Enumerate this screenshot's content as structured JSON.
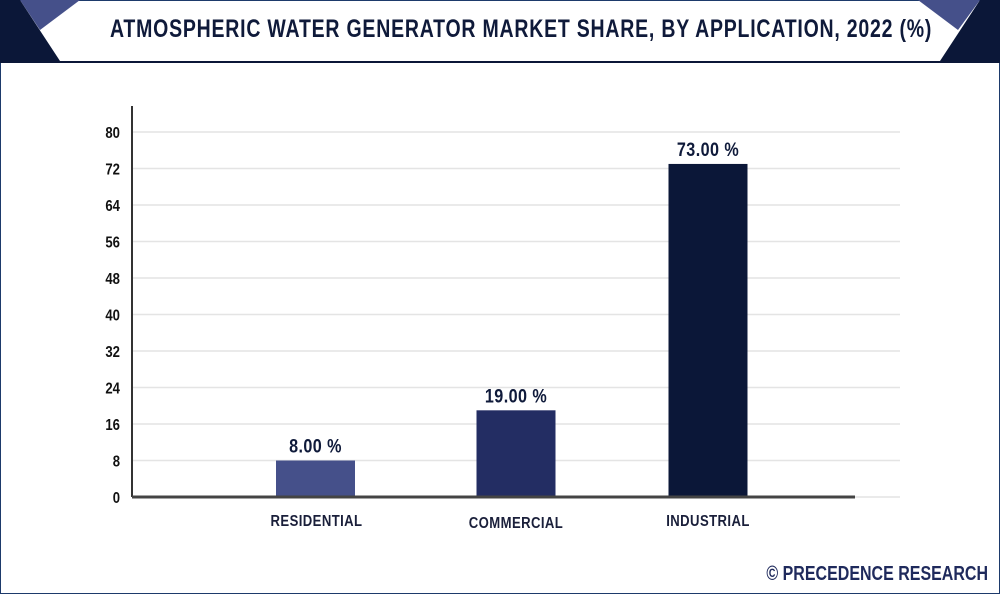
{
  "header": {
    "title": "ATMOSPHERIC WATER GENERATOR MARKET SHARE, BY APPLICATION, 2022 (%)"
  },
  "footer": {
    "credit": "© PRECEDENCE RESEARCH"
  },
  "colors": {
    "residential": "#45508a",
    "commercial": "#232d63",
    "industrial": "#0b1738",
    "accent_light": "#45508a",
    "accent_dark": "#0b1738"
  },
  "chart_data": {
    "type": "bar",
    "title": "ATMOSPHERIC WATER GENERATOR MARKET SHARE, BY APPLICATION, 2022 (%)",
    "xlabel": "",
    "ylabel": "",
    "categories": [
      "RESIDENTIAL",
      "COMMERCIAL",
      "INDUSTRIAL"
    ],
    "values": [
      8.0,
      19.0,
      73.0
    ],
    "data_labels": [
      "8.00 %",
      "19.00 %",
      "73.00 %"
    ],
    "yticks": [
      0,
      8,
      16,
      24,
      32,
      40,
      48,
      56,
      64,
      72,
      80
    ],
    "ylim": [
      0,
      80
    ],
    "grid": true,
    "legend": "none"
  }
}
